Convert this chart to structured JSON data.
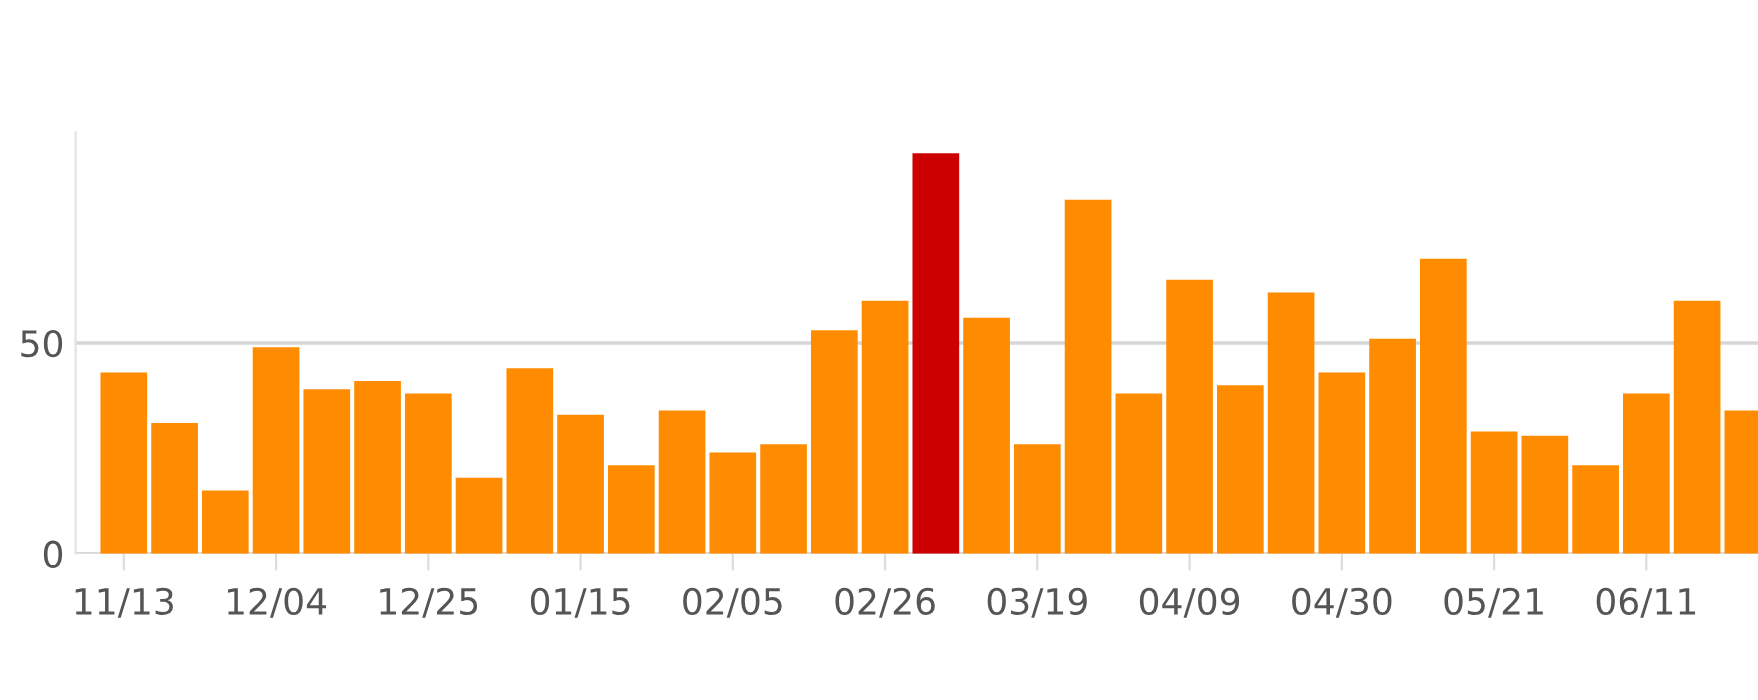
{
  "chart_data": {
    "type": "bar",
    "categories": [
      "11/13",
      null,
      null,
      "12/04",
      null,
      null,
      "12/25",
      null,
      null,
      "01/15",
      null,
      null,
      "02/05",
      null,
      null,
      "02/26",
      null,
      null,
      "03/19",
      null,
      null,
      "04/09",
      null,
      null,
      "04/30",
      null,
      null,
      "05/21",
      null,
      null,
      "06/11",
      null,
      null
    ],
    "values": [
      43,
      31,
      15,
      49,
      39,
      41,
      38,
      18,
      44,
      33,
      21,
      34,
      24,
      26,
      53,
      60,
      95,
      56,
      26,
      84,
      38,
      65,
      40,
      62,
      43,
      51,
      70,
      29,
      28,
      21,
      38,
      60,
      34
    ],
    "colors": [
      "#ff8c00",
      "#ff8c00",
      "#ff8c00",
      "#ff8c00",
      "#ff8c00",
      "#ff8c00",
      "#ff8c00",
      "#ff8c00",
      "#ff8c00",
      "#ff8c00",
      "#ff8c00",
      "#ff8c00",
      "#ff8c00",
      "#ff8c00",
      "#ff8c00",
      "#ff8c00",
      "#cc0000",
      "#ff8c00",
      "#ff8c00",
      "#ff8c00",
      "#ff8c00",
      "#ff8c00",
      "#ff8c00",
      "#ff8c00",
      "#ff8c00",
      "#ff8c00",
      "#ff8c00",
      "#ff8c00",
      "#ff8c00",
      "#ff8c00",
      "#ff8c00",
      "#ff8c00",
      "#ff8c00"
    ],
    "ylim": [
      0,
      100
    ],
    "yticks": [
      0,
      50
    ],
    "grid": "y"
  }
}
